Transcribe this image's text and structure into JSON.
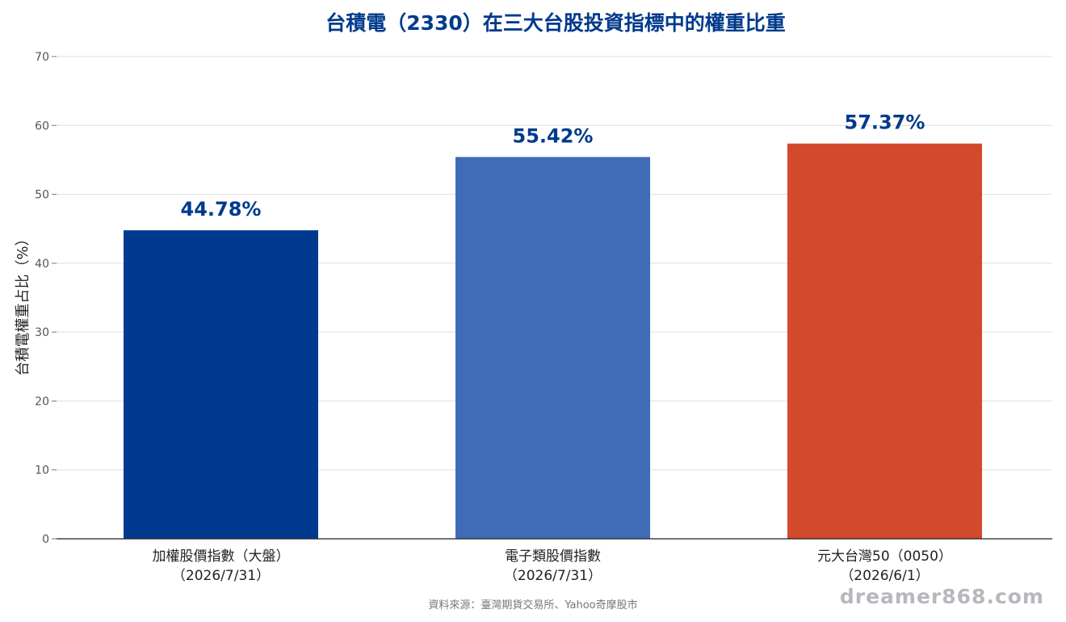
{
  "chart_data": {
    "type": "bar",
    "title": "台積電（2330）在三大台股投資指標中的權重比重",
    "ylabel": "台積電權重占比（%）",
    "xlabel": "",
    "ylim": [
      0,
      70
    ],
    "yticks": [
      0,
      10,
      20,
      30,
      40,
      50,
      60,
      70
    ],
    "grid": true,
    "categories": [
      {
        "line1": "加權股價指數（大盤）",
        "line2": "（2026/7/31）"
      },
      {
        "line1": "電子類股價指數",
        "line2": "（2026/7/31）"
      },
      {
        "line1": "元大台灣50（0050）",
        "line2": "（2026/6/1）"
      }
    ],
    "values": [
      44.78,
      55.42,
      57.37
    ],
    "value_labels": [
      "44.78%",
      "55.42%",
      "57.37%"
    ],
    "colors": [
      "#003a8f",
      "#3e6cb7",
      "#d2492b"
    ]
  },
  "footer": {
    "source": "資料來源：臺灣期貨交易所、Yahoo奇摩股市",
    "watermark": "dreamer868.com"
  }
}
